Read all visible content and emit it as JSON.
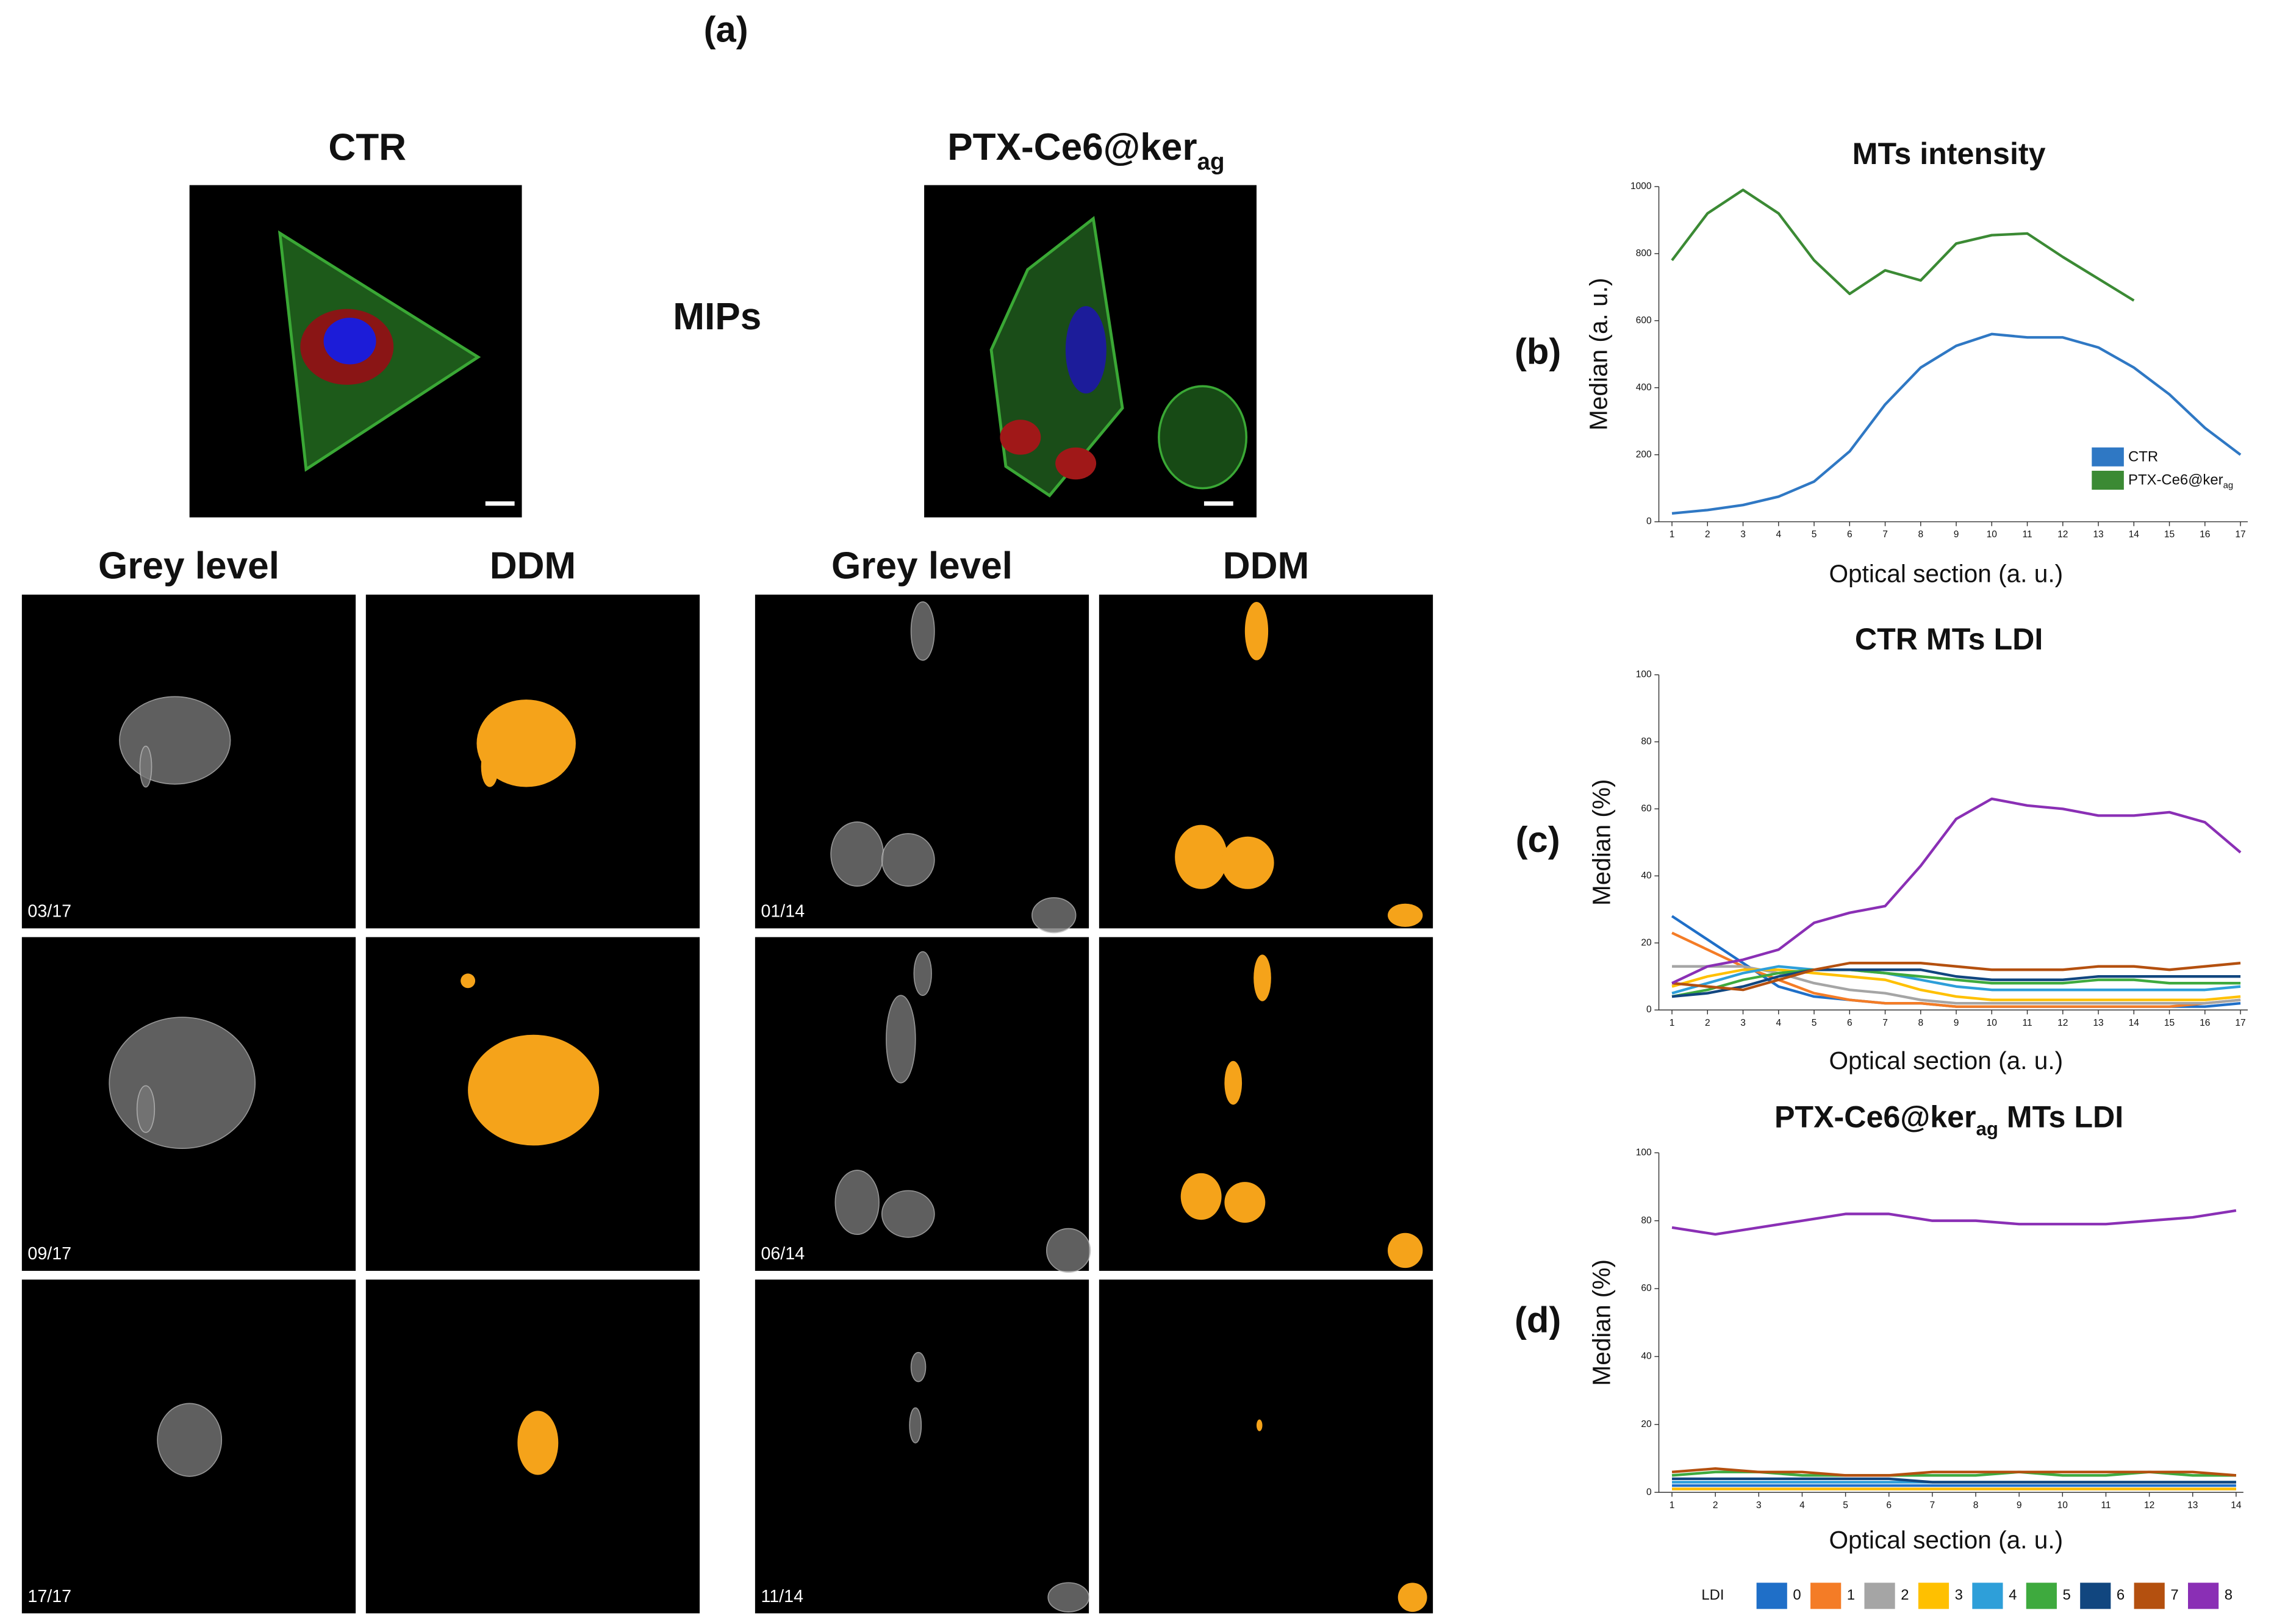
{
  "figure": {
    "panel_label": "(a)",
    "mips_label": "MIPs",
    "ctr_label": "CTR",
    "ptx_label": [
      {
        "text": "PTX-Ce6@ker"
      },
      {
        "text": "ag",
        "sub": true
      }
    ],
    "column_headers": [
      "Grey level",
      "DDM",
      "Grey level",
      "DDM"
    ],
    "slice_labels_ctr": [
      "03/17",
      "09/17",
      "17/17"
    ],
    "slice_labels_ptx": [
      "01/14",
      "06/14",
      "11/14"
    ]
  },
  "chart_data": [
    {
      "type": "line",
      "panel_label": "(b)",
      "title": "MTs intensity",
      "x_label": "Optical section (a. u.)",
      "y_label": "Median (a. u.)",
      "x": [
        1,
        2,
        3,
        4,
        5,
        6,
        7,
        8,
        9,
        10,
        11,
        12,
        13,
        14,
        15,
        16,
        17
      ],
      "xlim": [
        1,
        17
      ],
      "xticks": [
        1,
        2,
        3,
        4,
        5,
        6,
        7,
        8,
        9,
        10,
        11,
        12,
        13,
        14,
        15,
        16,
        17
      ],
      "ylim": [
        0,
        1000
      ],
      "yticks": [
        0,
        200,
        400,
        600,
        800,
        1000
      ],
      "legend": "lower right",
      "series": [
        {
          "name": "CTR",
          "color": "#2f78c4",
          "values": [
            25,
            35,
            50,
            75,
            120,
            210,
            350,
            460,
            525,
            560,
            550,
            550,
            520,
            460,
            380,
            280,
            200
          ]
        },
        {
          "name": [
            {
              "text": "PTX-Ce6@ker"
            },
            {
              "text": "ag",
              "sub": true
            }
          ],
          "color": "#3b8a34",
          "values": [
            780,
            920,
            990,
            920,
            780,
            680,
            750,
            720,
            830,
            855,
            860,
            790,
            725,
            660,
            null,
            null,
            null
          ]
        }
      ]
    },
    {
      "type": "line",
      "panel_label": "(c)",
      "title": "CTR MTs LDI",
      "x_label": "Optical section (a. u.)",
      "y_label": "Median (%)",
      "x": [
        1,
        2,
        3,
        4,
        5,
        6,
        7,
        8,
        9,
        10,
        11,
        12,
        13,
        14,
        15,
        16,
        17
      ],
      "xlim": [
        1,
        17
      ],
      "xticks": [
        1,
        2,
        3,
        4,
        5,
        6,
        7,
        8,
        9,
        10,
        11,
        12,
        13,
        14,
        15,
        16,
        17
      ],
      "ylim": [
        0,
        100
      ],
      "yticks": [
        0,
        20,
        40,
        60,
        80,
        100
      ],
      "series": [
        {
          "color": "#1f6fc8",
          "values": [
            28,
            21,
            14,
            7,
            4,
            3,
            2,
            2,
            1,
            1,
            1,
            1,
            1,
            1,
            1,
            1,
            2
          ]
        },
        {
          "color": "#f47c26",
          "values": [
            23,
            18,
            13,
            9,
            5,
            3,
            2,
            2,
            1,
            1,
            1,
            1,
            1,
            1,
            1,
            2,
            3
          ]
        },
        {
          "color": "#a5a5a5",
          "values": [
            13,
            13,
            13,
            11,
            8,
            6,
            5,
            3,
            2,
            2,
            2,
            2,
            2,
            2,
            2,
            2,
            3
          ]
        },
        {
          "color": "#ffc000",
          "values": [
            7,
            10,
            12,
            12,
            11,
            10,
            9,
            6,
            4,
            3,
            3,
            3,
            3,
            3,
            3,
            3,
            4
          ]
        },
        {
          "color": "#2e9fd9",
          "values": [
            5,
            8,
            11,
            13,
            12,
            12,
            11,
            9,
            7,
            6,
            6,
            6,
            6,
            6,
            6,
            6,
            7
          ]
        },
        {
          "color": "#3eaa3e",
          "values": [
            4,
            6,
            9,
            11,
            12,
            12,
            11,
            10,
            9,
            8,
            8,
            8,
            9,
            9,
            8,
            8,
            8
          ]
        },
        {
          "color": "#11467f",
          "values": [
            4,
            5,
            7,
            10,
            12,
            12,
            12,
            12,
            10,
            9,
            9,
            9,
            10,
            10,
            10,
            10,
            10
          ]
        },
        {
          "color": "#b4500f",
          "values": [
            8,
            7,
            6,
            9,
            12,
            14,
            14,
            14,
            13,
            12,
            12,
            12,
            13,
            13,
            12,
            13,
            14
          ]
        },
        {
          "color": "#8a2fb5",
          "values": [
            8,
            13,
            15,
            18,
            26,
            29,
            31,
            43,
            57,
            63,
            61,
            60,
            58,
            58,
            59,
            56,
            47
          ]
        }
      ]
    },
    {
      "type": "line",
      "panel_label": "(d)",
      "title": [
        {
          "text": "PTX-Ce6@ker"
        },
        {
          "text": "ag",
          "sub": true
        },
        {
          "text": " MTs LDI"
        }
      ],
      "x_label": "Optical section (a. u.)",
      "y_label": "Median (%)",
      "x": [
        1,
        2,
        3,
        4,
        5,
        6,
        7,
        8,
        9,
        10,
        11,
        12,
        13,
        14
      ],
      "xlim": [
        1,
        14
      ],
      "xticks": [
        1,
        2,
        3,
        4,
        5,
        6,
        7,
        8,
        9,
        10,
        11,
        12,
        13,
        14
      ],
      "ylim": [
        0,
        100
      ],
      "yticks": [
        0,
        20,
        40,
        60,
        80,
        100
      ],
      "legend": "bottom",
      "legend_title": "LDI",
      "series": [
        {
          "name": "0",
          "color": "#1f6fc8",
          "values": [
            2,
            2,
            2,
            2,
            2,
            2,
            2,
            2,
            2,
            2,
            2,
            2,
            2,
            2
          ]
        },
        {
          "name": "1",
          "color": "#f47c26",
          "values": [
            1,
            1,
            1,
            1,
            1,
            1,
            1,
            1,
            1,
            1,
            1,
            1,
            1,
            1
          ]
        },
        {
          "name": "2",
          "color": "#a5a5a5",
          "values": [
            1,
            1,
            1,
            1,
            1,
            1,
            1,
            1,
            1,
            1,
            1,
            1,
            1,
            1
          ]
        },
        {
          "name": "3",
          "color": "#ffc000",
          "values": [
            1,
            1,
            1,
            1,
            1,
            1,
            1,
            1,
            1,
            1,
            1,
            1,
            1,
            1
          ]
        },
        {
          "name": "4",
          "color": "#2e9fd9",
          "values": [
            3,
            3,
            3,
            3,
            3,
            3,
            3,
            3,
            3,
            3,
            3,
            3,
            3,
            3
          ]
        },
        {
          "name": "5",
          "color": "#3eaa3e",
          "values": [
            5,
            6,
            6,
            5,
            5,
            5,
            5,
            5,
            6,
            5,
            5,
            6,
            5,
            5
          ]
        },
        {
          "name": "6",
          "color": "#11467f",
          "values": [
            4,
            4,
            4,
            4,
            4,
            4,
            3,
            3,
            3,
            3,
            3,
            3,
            3,
            3
          ]
        },
        {
          "name": "7",
          "color": "#b4500f",
          "values": [
            6,
            7,
            6,
            6,
            5,
            5,
            6,
            6,
            6,
            6,
            6,
            6,
            6,
            5
          ]
        },
        {
          "name": "8",
          "color": "#8a2fb5",
          "values": [
            78,
            76,
            78,
            80,
            82,
            82,
            80,
            80,
            79,
            79,
            79,
            80,
            81,
            83
          ]
        }
      ]
    }
  ]
}
